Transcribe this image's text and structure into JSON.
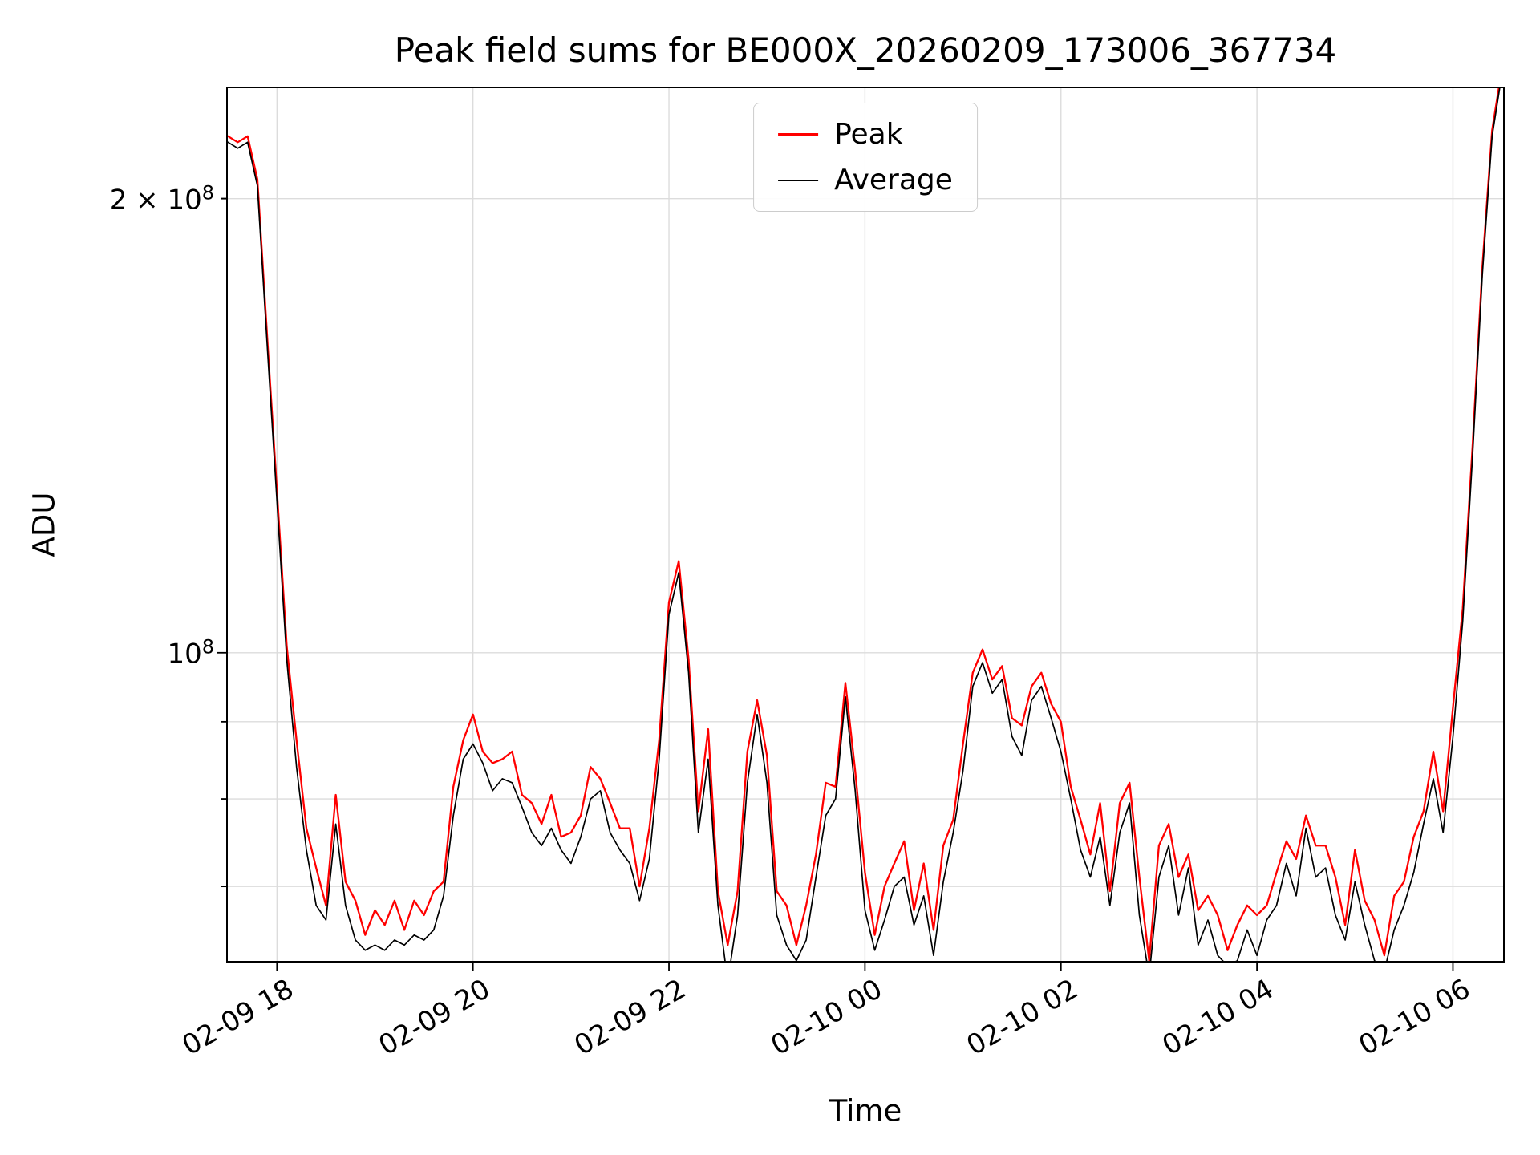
{
  "chart_data": {
    "type": "line",
    "title": "Peak field sums for BE000X_20260209_173006_367734",
    "xlabel": "Time",
    "ylabel": "ADU",
    "y_scale": "log",
    "value_unit": "1e6 ADU",
    "x_unit": "hours, where 18 = 02-09 18:00 and 30 = 02-10 06:00",
    "x_range": [
      17.49,
      30.52
    ],
    "y_range": [
      62.4,
      237
    ],
    "grid": true,
    "legend_position": "upper center",
    "x_ticks": [
      {
        "value": 18,
        "label": "02-09 18"
      },
      {
        "value": 20,
        "label": "02-09 20"
      },
      {
        "value": 22,
        "label": "02-09 22"
      },
      {
        "value": 24,
        "label": "02-10 00"
      },
      {
        "value": 26,
        "label": "02-10 02"
      },
      {
        "value": 28,
        "label": "02-10 04"
      },
      {
        "value": 30,
        "label": "02-10 06"
      }
    ],
    "y_ticks": [
      {
        "value": 100,
        "prefix": "10",
        "exp": "8",
        "kind": "major"
      },
      {
        "value": 200,
        "prefix": "2 × 10",
        "exp": "8",
        "kind": "minor"
      }
    ],
    "y_gridlines": [
      70,
      80,
      90,
      100,
      200
    ],
    "y_minor_ticks": [
      70,
      80,
      90,
      200
    ],
    "x": [
      17.5,
      17.6,
      17.7,
      17.8,
      17.9,
      18.0,
      18.1,
      18.2,
      18.3,
      18.4,
      18.5,
      18.6,
      18.7,
      18.8,
      18.9,
      19.0,
      19.1,
      19.2,
      19.3,
      19.4,
      19.5,
      19.6,
      19.7,
      19.8,
      19.9,
      20.0,
      20.1,
      20.2,
      20.3,
      20.4,
      20.5,
      20.6,
      20.7,
      20.8,
      20.9,
      21.0,
      21.1,
      21.2,
      21.3,
      21.4,
      21.5,
      21.6,
      21.7,
      21.8,
      21.9,
      22.0,
      22.1,
      22.2,
      22.3,
      22.4,
      22.5,
      22.6,
      22.7,
      22.8,
      22.9,
      23.0,
      23.1,
      23.2,
      23.3,
      23.4,
      23.5,
      23.6,
      23.7,
      23.8,
      23.9,
      24.0,
      24.1,
      24.2,
      24.3,
      24.4,
      24.5,
      24.6,
      24.7,
      24.8,
      24.9,
      25.0,
      25.1,
      25.2,
      25.3,
      25.4,
      25.5,
      25.6,
      25.7,
      25.8,
      25.9,
      26.0,
      26.1,
      26.2,
      26.3,
      26.4,
      26.5,
      26.6,
      26.7,
      26.8,
      26.9,
      27.0,
      27.1,
      27.2,
      27.3,
      27.4,
      27.5,
      27.6,
      27.7,
      27.8,
      27.9,
      28.0,
      28.1,
      28.2,
      28.3,
      28.4,
      28.5,
      28.6,
      28.7,
      28.8,
      28.9,
      29.0,
      29.1,
      29.2,
      29.3,
      29.4,
      29.5,
      29.6,
      29.7,
      29.8,
      29.9,
      30.0,
      30.1,
      30.2,
      30.3,
      30.4,
      30.5
    ],
    "series": [
      {
        "name": "Peak",
        "color": "#ff0000",
        "values": [
          220,
          218,
          220,
          206,
          162,
          128,
          101,
          87.5,
          76.5,
          72,
          68,
          80.5,
          70.5,
          68.5,
          65,
          67.5,
          66,
          68.5,
          65.5,
          68.5,
          67,
          69.5,
          70.5,
          81.5,
          87.5,
          91,
          86,
          84.5,
          85,
          86,
          80.5,
          79.5,
          77,
          80.5,
          75.5,
          76,
          78,
          84,
          82.5,
          79.5,
          76.5,
          76.5,
          70,
          76.5,
          87.5,
          108,
          115,
          99,
          78.5,
          89,
          69.5,
          64,
          69.5,
          86,
          93,
          85.5,
          69.5,
          68,
          64,
          68,
          73.5,
          82,
          81.5,
          95.5,
          83.5,
          71.5,
          65,
          70,
          72.5,
          75,
          67.5,
          72.5,
          65.5,
          74.5,
          77.5,
          87,
          97,
          100.5,
          96,
          98,
          90.5,
          89.5,
          95,
          97,
          92.5,
          90,
          81.5,
          77.5,
          73.5,
          79.5,
          69.5,
          79.5,
          82,
          71,
          62.5,
          74.5,
          77,
          71,
          73.5,
          67.5,
          69,
          67,
          63.5,
          66,
          68,
          67,
          68,
          71.5,
          75,
          73,
          78,
          74.5,
          74.5,
          71,
          66,
          74,
          68.5,
          66.5,
          63,
          69,
          70.5,
          75.5,
          78.5,
          86,
          78.5,
          92,
          107,
          137,
          180,
          222,
          244
        ]
      },
      {
        "name": "Average",
        "color": "#000000",
        "values": [
          218,
          216,
          218,
          204,
          160,
          126,
          99,
          84,
          74,
          68,
          66.5,
          77,
          68,
          64.5,
          63.5,
          64,
          63.5,
          64.5,
          64,
          65,
          64.5,
          65.5,
          69,
          78,
          85,
          87,
          84.5,
          81,
          82.5,
          82,
          79,
          76,
          74.5,
          76.5,
          74,
          72.5,
          75.5,
          80,
          81,
          76,
          74,
          72.5,
          68.5,
          73,
          85,
          106,
          113,
          97,
          76,
          85,
          68,
          60.5,
          67,
          82,
          91,
          82,
          67,
          64,
          62.5,
          64.5,
          71,
          78,
          80,
          93.5,
          81,
          67.5,
          63.5,
          66.5,
          70,
          71,
          66,
          69,
          63,
          70.5,
          76,
          83.5,
          95,
          98.5,
          94,
          96,
          88,
          85.5,
          93,
          95,
          90.5,
          86,
          80,
          74,
          71,
          75.5,
          68,
          76,
          79.5,
          67,
          61,
          71,
          74.5,
          67,
          72,
          64,
          66.5,
          63,
          62,
          62.5,
          65.5,
          63,
          66.5,
          68,
          72.5,
          69,
          76.5,
          71,
          72,
          67,
          64.5,
          70.5,
          66,
          62.5,
          61.5,
          65.5,
          68,
          71.5,
          77,
          82.5,
          76,
          88,
          105,
          135,
          178,
          220,
          242
        ]
      }
    ]
  }
}
